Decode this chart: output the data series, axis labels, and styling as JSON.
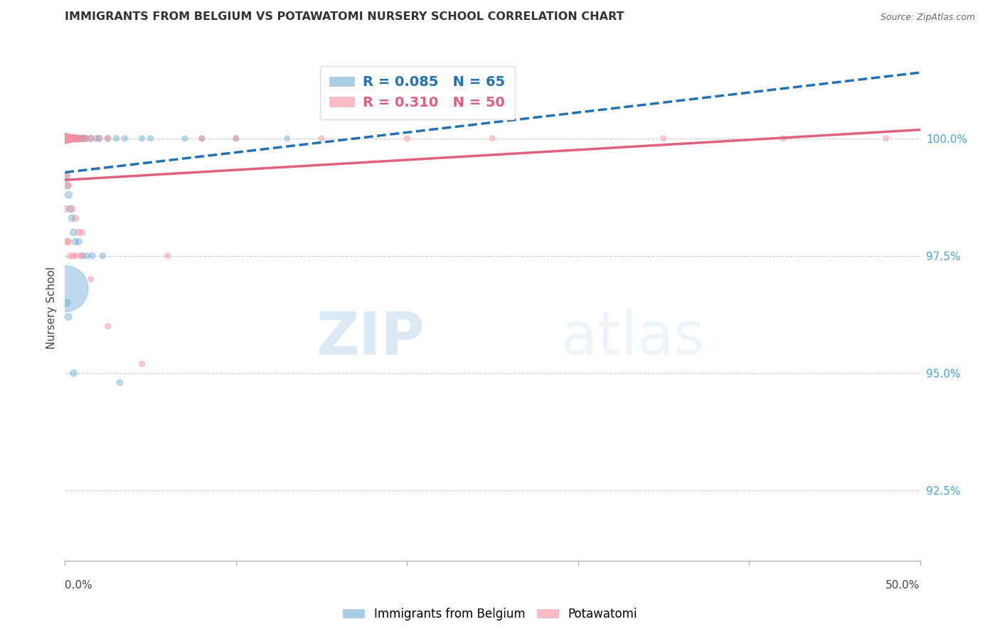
{
  "title": "IMMIGRANTS FROM BELGIUM VS POTAWATOMI NURSERY SCHOOL CORRELATION CHART",
  "source": "Source: ZipAtlas.com",
  "blue_label": "Immigrants from Belgium",
  "pink_label": "Potawatomi",
  "ylabel": "Nursery School",
  "blue_R": 0.085,
  "blue_N": 65,
  "pink_R": 0.31,
  "pink_N": 50,
  "blue_color": "#6baed6",
  "pink_color": "#fc8d9c",
  "blue_line_color": "#2171b5",
  "pink_line_color": "#e0607e",
  "watermark_zip": "ZIP",
  "watermark_atlas": "atlas",
  "xmin": 0.0,
  "xmax": 50.0,
  "ymin": 91.0,
  "ymax": 101.8,
  "right_yticks": [
    92.5,
    95.0,
    97.5,
    100.0
  ],
  "right_ytick_labels": [
    "92.5%",
    "95.0%",
    "97.5%",
    "100.0%"
  ],
  "blue_x": [
    0.0,
    0.0,
    0.0,
    0.0,
    0.0,
    0.0,
    0.0,
    0.0,
    0.0,
    0.0,
    0.1,
    0.1,
    0.1,
    0.1,
    0.1,
    0.1,
    0.1,
    0.2,
    0.2,
    0.2,
    0.2,
    0.3,
    0.3,
    0.3,
    0.4,
    0.4,
    0.5,
    0.5,
    0.6,
    0.6,
    0.7,
    0.8,
    0.9,
    1.0,
    1.1,
    1.2,
    1.5,
    1.8,
    2.0,
    2.5,
    3.0,
    3.5,
    4.5,
    5.0,
    7.0,
    8.0,
    10.0,
    13.0,
    0.0,
    0.1,
    0.2,
    0.3,
    0.4,
    0.5,
    0.6,
    0.8,
    1.0,
    1.3,
    1.6,
    2.2,
    0.0,
    0.1,
    0.2,
    0.5,
    3.2
  ],
  "blue_y": [
    100.0,
    100.0,
    100.0,
    100.0,
    100.0,
    100.0,
    100.0,
    100.0,
    100.0,
    100.0,
    100.0,
    100.0,
    100.0,
    100.0,
    100.0,
    100.0,
    100.0,
    100.0,
    100.0,
    100.0,
    100.0,
    100.0,
    100.0,
    100.0,
    100.0,
    100.0,
    100.0,
    100.0,
    100.0,
    100.0,
    100.0,
    100.0,
    100.0,
    100.0,
    100.0,
    100.0,
    100.0,
    100.0,
    100.0,
    100.0,
    100.0,
    100.0,
    100.0,
    100.0,
    100.0,
    100.0,
    100.0,
    100.0,
    99.2,
    99.0,
    98.8,
    98.5,
    98.3,
    98.0,
    97.8,
    97.8,
    97.5,
    97.5,
    97.5,
    97.5,
    96.8,
    96.5,
    96.2,
    95.0,
    94.8
  ],
  "blue_s": [
    120,
    100,
    90,
    80,
    75,
    70,
    65,
    60,
    55,
    50,
    90,
    80,
    75,
    70,
    65,
    60,
    55,
    75,
    70,
    65,
    60,
    65,
    60,
    55,
    60,
    55,
    55,
    50,
    50,
    45,
    45,
    45,
    42,
    42,
    40,
    40,
    38,
    36,
    36,
    35,
    34,
    33,
    32,
    32,
    30,
    30,
    30,
    30,
    60,
    55,
    52,
    50,
    48,
    46,
    44,
    42,
    40,
    38,
    36,
    35,
    2200,
    52,
    48,
    44,
    36
  ],
  "pink_x": [
    0.0,
    0.0,
    0.0,
    0.0,
    0.0,
    0.0,
    0.0,
    0.1,
    0.1,
    0.1,
    0.1,
    0.2,
    0.2,
    0.3,
    0.3,
    0.4,
    0.5,
    0.6,
    0.7,
    0.8,
    1.0,
    1.2,
    1.5,
    2.0,
    2.5,
    0.1,
    0.2,
    0.4,
    0.6,
    0.8,
    1.0,
    0.0,
    0.1,
    0.2,
    0.3,
    0.5,
    0.7,
    1.0,
    1.5,
    2.5,
    4.5,
    6.0,
    8.0,
    10.0,
    15.0,
    20.0,
    25.0,
    35.0,
    42.0,
    48.0
  ],
  "pink_y": [
    100.0,
    100.0,
    100.0,
    100.0,
    100.0,
    100.0,
    100.0,
    100.0,
    100.0,
    100.0,
    100.0,
    100.0,
    100.0,
    100.0,
    100.0,
    100.0,
    100.0,
    100.0,
    100.0,
    100.0,
    100.0,
    100.0,
    100.0,
    100.0,
    100.0,
    99.2,
    99.0,
    98.5,
    98.3,
    98.0,
    98.0,
    98.5,
    97.8,
    97.8,
    97.5,
    97.5,
    97.5,
    97.5,
    97.0,
    96.0,
    95.2,
    97.5,
    100.0,
    100.0,
    100.0,
    100.0,
    100.0,
    100.0,
    100.0,
    100.0
  ],
  "pink_s": [
    100,
    90,
    85,
    80,
    75,
    70,
    65,
    80,
    75,
    70,
    65,
    70,
    65,
    65,
    60,
    58,
    56,
    54,
    52,
    50,
    48,
    46,
    44,
    42,
    40,
    48,
    46,
    44,
    42,
    40,
    38,
    44,
    42,
    40,
    38,
    36,
    35,
    34,
    33,
    32,
    32,
    32,
    32,
    32,
    32,
    32,
    32,
    32,
    32,
    32
  ]
}
